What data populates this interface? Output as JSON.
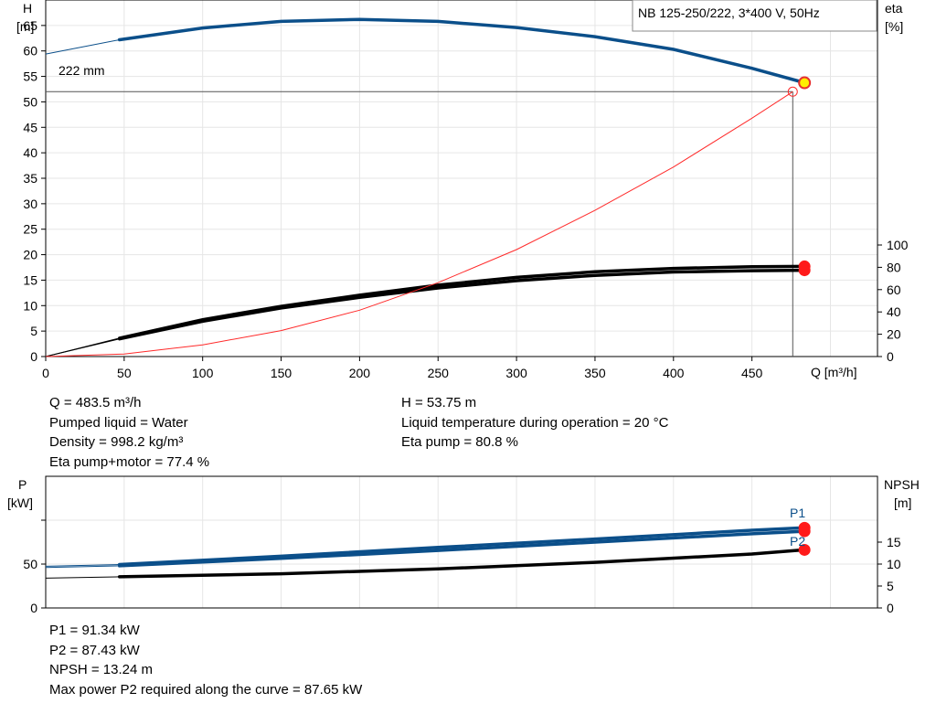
{
  "chart_data": [
    {
      "type": "line",
      "title": "NB 125-250/222, 3*400 V, 50Hz",
      "xlabel": "Q [m³/h]",
      "ylabel_left": [
        "H",
        "[m]"
      ],
      "ylabel_right": [
        "eta",
        "[%]"
      ],
      "xlim": [
        0,
        530
      ],
      "ylim_left": [
        0,
        70
      ],
      "ylim_right": [
        0,
        100
      ],
      "x_ticks": [
        0,
        50,
        100,
        150,
        200,
        250,
        300,
        350,
        400,
        450
      ],
      "y_ticks_left": [
        0,
        5,
        10,
        15,
        20,
        25,
        30,
        35,
        40,
        45,
        50,
        55,
        60,
        65
      ],
      "y_ticks_right": [
        0,
        20,
        40,
        60,
        80,
        100
      ],
      "grid": true,
      "curve_label": "222 mm",
      "series": [
        {
          "role": "head",
          "color": "#0b4f8a",
          "axis": "left",
          "x": [
            0,
            47,
            100,
            150,
            200,
            250,
            300,
            350,
            400,
            450,
            483.5
          ],
          "y": [
            59.4,
            62.2,
            64.5,
            65.8,
            66.2,
            65.8,
            64.6,
            62.8,
            60.3,
            56.6,
            53.75
          ]
        },
        {
          "role": "efficiency pump",
          "color": "#000000",
          "axis": "right",
          "x": [
            0,
            47,
            100,
            150,
            200,
            250,
            300,
            350,
            400,
            450,
            483.5
          ],
          "y": [
            0,
            16.5,
            33,
            45,
            55,
            64,
            71,
            76,
            79,
            80.5,
            80.8
          ]
        },
        {
          "role": "efficiency pump+motor",
          "color": "#000000",
          "axis": "right",
          "x": [
            0,
            47,
            100,
            150,
            200,
            250,
            300,
            350,
            400,
            450,
            483.5
          ],
          "y": [
            0,
            15.8,
            31.6,
            43.5,
            53,
            61.5,
            68,
            72.8,
            75.8,
            77,
            77.4
          ]
        },
        {
          "role": "system curve",
          "color": "#ff2a2a",
          "axis": "left",
          "x": [
            0,
            50,
            100,
            150,
            200,
            250,
            300,
            350,
            400,
            450,
            476
          ],
          "y": [
            0,
            0.5,
            2.3,
            5.1,
            9.1,
            14.5,
            21,
            28.7,
            37.2,
            46.8,
            52
          ]
        }
      ],
      "duty_point": {
        "Q": 483.5,
        "H": 53.75
      },
      "system_intersection": {
        "Q": 476,
        "H": 52
      }
    },
    {
      "type": "line",
      "ylabel_left": [
        "P",
        "[kW]"
      ],
      "ylabel_right": [
        "NPSH",
        "[m]"
      ],
      "xlim": [
        0,
        530
      ],
      "ylim_left": [
        0,
        100
      ],
      "ylim_right": [
        0,
        20
      ],
      "y_ticks_left": [
        0,
        50
      ],
      "y_ticks_right": [
        0,
        5,
        10,
        15
      ],
      "grid": true,
      "series": [
        {
          "name": "P1",
          "color": "#0b4f8a",
          "axis": "left",
          "x": [
            0,
            47,
            150,
            250,
            350,
            450,
            483.5
          ],
          "y": [
            47.5,
            49.5,
            59,
            69,
            78.5,
            88.5,
            91.34
          ]
        },
        {
          "name": "P2",
          "color": "#0b4f8a",
          "axis": "left",
          "x": [
            0,
            47,
            150,
            250,
            350,
            450,
            483.5
          ],
          "y": [
            46,
            48,
            56.5,
            65.5,
            75,
            84.5,
            87.43
          ]
        },
        {
          "role": "NPSH",
          "color": "#000000",
          "axis": "right",
          "x": [
            0,
            47,
            150,
            250,
            350,
            450,
            483.5
          ],
          "y": [
            6.8,
            7.1,
            7.8,
            8.9,
            10.4,
            12.3,
            13.24
          ]
        }
      ]
    }
  ],
  "info_top_left": [
    "Q = 483.5 m³/h",
    "Pumped liquid = Water",
    "Density = 998.2 kg/m³",
    "Eta pump+motor = 77.4 %"
  ],
  "info_top_right": [
    "H = 53.75 m",
    "Liquid temperature during operation = 20 °C",
    "Eta pump = 80.8 %"
  ],
  "info_bottom": [
    "P1 = 91.34 kW",
    "P2 = 87.43 kW",
    "NPSH = 13.24 m",
    "Max power P2 required along the curve = 87.65 kW"
  ]
}
